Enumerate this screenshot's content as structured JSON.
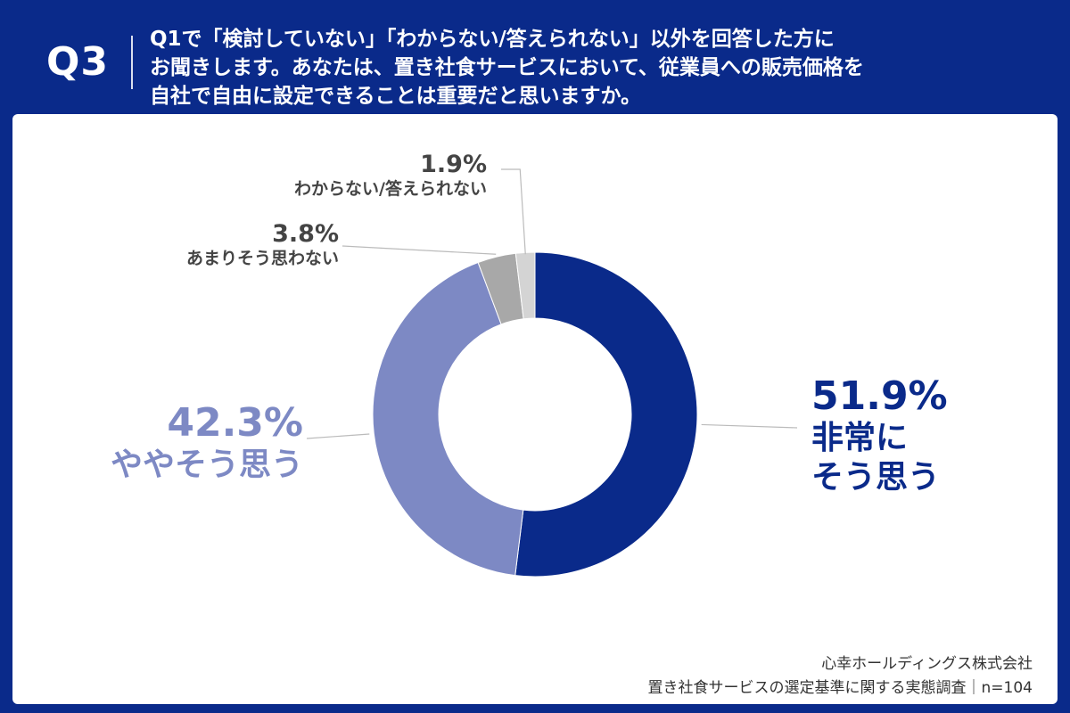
{
  "header": {
    "question_number": "Q3",
    "question_lines": [
      "Q1で「検討していない」「わからない/答えられない」以外を回答した方に",
      "お聞きします。あなたは、置き社食サービスにおいて、従業員への販売価格を",
      "自社で自由に設定できることは重要だと思いますか。"
    ]
  },
  "chart_data": {
    "type": "pie",
    "style": "donut",
    "slices": [
      {
        "label": "非常にそう思う",
        "value": 51.9,
        "display": "51.9%",
        "label_lines": [
          "非常に",
          "そう思う"
        ],
        "color": "#0a2a8a"
      },
      {
        "label": "ややそう思う",
        "value": 42.3,
        "display": "42.3%",
        "label_lines": [
          "ややそう思う"
        ],
        "color": "#7d89c4"
      },
      {
        "label": "あまりそう思わない",
        "value": 3.8,
        "display": "3.8%",
        "label_lines": [
          "あまりそう思わない"
        ],
        "color": "#a8a8a8"
      },
      {
        "label": "わからない/答えられない",
        "value": 1.9,
        "display": "1.9%",
        "label_lines": [
          "わからない/答えられない"
        ],
        "color": "#d4d4d4"
      }
    ],
    "start": "top",
    "direction": "clockwise",
    "legend": "none"
  },
  "footer": {
    "company": "心幸ホールディングス株式会社",
    "survey": "置き社食サービスの選定基準に関する実態調査｜n=104"
  }
}
